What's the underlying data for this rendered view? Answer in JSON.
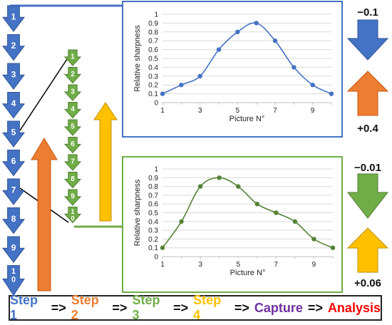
{
  "colors": {
    "blue": "#4472C4",
    "blue_dark": "#2F5597",
    "green": "#70AD47",
    "green_dark": "#507E32",
    "orange": "#ED7D31",
    "yellow": "#FFC000",
    "purple": "#7030A0",
    "red": "#FF0000"
  },
  "coarse_steps": [
    "1",
    "2",
    "3",
    "4",
    "5",
    "6",
    "7",
    "8",
    "9",
    "10"
  ],
  "fine_steps": [
    "1",
    "2",
    "3",
    "4",
    "5",
    "6",
    "7",
    "8",
    "9",
    "10"
  ],
  "coarse_step_changes": {
    "down": "−0.1",
    "up": "+0.4"
  },
  "fine_step_changes": {
    "down": "−0.01",
    "up": "+0.06"
  },
  "chart_data": [
    {
      "type": "line",
      "xlabel": "Picture N°",
      "ylabel": "Relative sharpness",
      "x": [
        1,
        2,
        3,
        4,
        5,
        6,
        7,
        8,
        9,
        10
      ],
      "xticks": [
        "1",
        "3",
        "5",
        "7",
        "9"
      ],
      "xlim": [
        1,
        10
      ],
      "ylim": [
        0,
        1
      ],
      "yticks": [
        "0",
        "0.1",
        "0.2",
        "0.3",
        "0.4",
        "0.5",
        "0.6",
        "0.7",
        "0.8",
        "0.9",
        "1"
      ],
      "grid": true,
      "series": [
        {
          "values": [
            0.1,
            0.2,
            0.3,
            0.6,
            0.8,
            0.9,
            0.7,
            0.4,
            0.2,
            0.1
          ],
          "color": "#4472C4"
        }
      ],
      "frame_color": "#4472C4"
    },
    {
      "type": "line",
      "xlabel": "Picture N°",
      "ylabel": "Relative sharpness",
      "x": [
        1,
        2,
        3,
        4,
        5,
        6,
        7,
        8,
        9,
        10
      ],
      "xticks": [
        "1",
        "3",
        "5",
        "7",
        "9"
      ],
      "xlim": [
        1,
        10
      ],
      "ylim": [
        0,
        1
      ],
      "yticks": [
        "0",
        "0.1",
        "0.2",
        "0.3",
        "0.4",
        "0.5",
        "0.6",
        "0.7",
        "0.8",
        "0.9",
        "1"
      ],
      "grid": true,
      "series": [
        {
          "values": [
            0.1,
            0.4,
            0.8,
            0.9,
            0.8,
            0.6,
            0.5,
            0.4,
            0.2,
            0.1
          ],
          "color": "#548235"
        }
      ],
      "frame_color": "#70AD47"
    }
  ],
  "pipeline": [
    {
      "label": "Step 1",
      "color": "#4472C4"
    },
    {
      "label": "=>",
      "color": "#111111"
    },
    {
      "label": "Step 2",
      "color": "#ED7D31"
    },
    {
      "label": "=>",
      "color": "#111111"
    },
    {
      "label": "Step 3",
      "color": "#70AD47"
    },
    {
      "label": "=>",
      "color": "#111111"
    },
    {
      "label": "Step 4",
      "color": "#FFC000"
    },
    {
      "label": "=>",
      "color": "#111111"
    },
    {
      "label": "Capture",
      "color": "#7030A0"
    },
    {
      "label": "=>",
      "color": "#111111"
    },
    {
      "label": "Analysis",
      "color": "#FF0000"
    }
  ]
}
